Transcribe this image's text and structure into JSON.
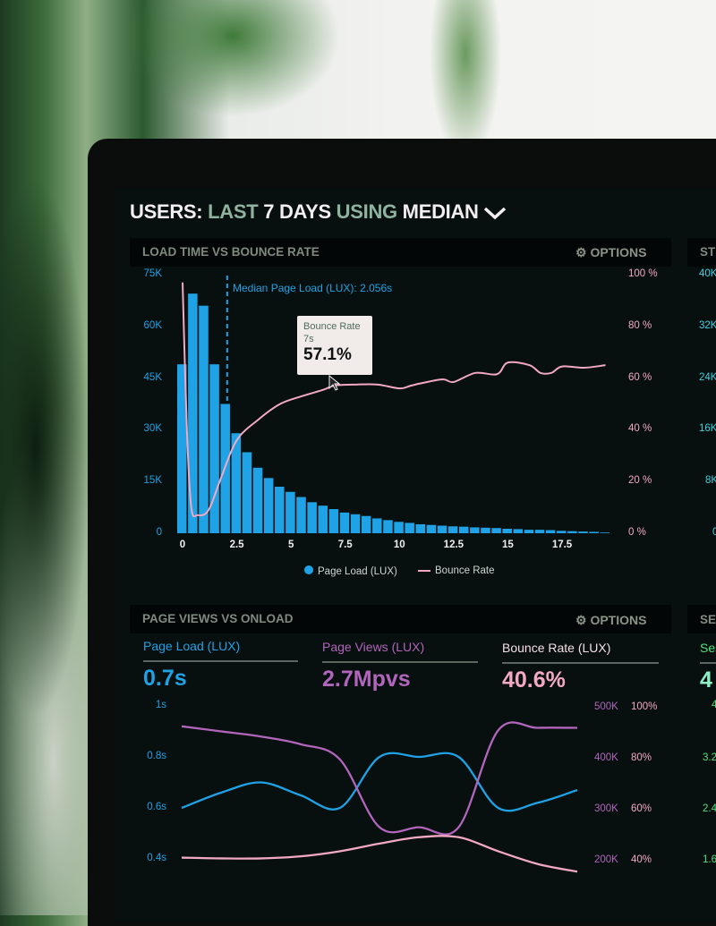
{
  "header": {
    "parts": [
      "USERS:",
      "LAST",
      "7 DAYS",
      "USING",
      "MEDIAN"
    ],
    "dropdown_icon": "chevron-down-icon"
  },
  "colors": {
    "page_load": "#1fa3e6",
    "bounce_rate": "#f3a9c3",
    "page_views": "#b165bb",
    "sessions": "#52e07e",
    "starts": "#3fd1e0"
  },
  "panel1": {
    "title": "LOAD TIME VS BOUNCE RATE",
    "options": "OPTIONS",
    "median_label": "Median Page Load (LUX): 2.056s",
    "tooltip": {
      "series": "Bounce Rate",
      "x": "7s",
      "value": "57.1%"
    },
    "legend": [
      "Page Load (LUX)",
      "Bounce Rate"
    ]
  },
  "panel2": {
    "title": "PAGE VIEWS VS ONLOAD",
    "options": "OPTIONS",
    "metrics": [
      {
        "label": "Page Load (LUX)",
        "value": "0.7s"
      },
      {
        "label": "Page Views (LUX)",
        "value": "2.7Mpvs"
      },
      {
        "label": "Bounce Rate (LUX)",
        "value": "40.6%"
      }
    ]
  },
  "side_panels": {
    "top_title": "ST",
    "top_ticks": [
      "40K",
      "32K",
      "24K",
      "16K",
      "8K",
      "0"
    ],
    "bottom_title": "SE",
    "bottom_metric_label": "Ses",
    "bottom_metric_value": "4",
    "bottom_ticks": [
      "4",
      "3.2",
      "2.4",
      "1.6"
    ]
  },
  "chart_data": [
    {
      "type": "bar+line",
      "title": "LOAD TIME VS BOUNCE RATE",
      "x_ticks": [
        "0",
        "2.5",
        "5",
        "7.5",
        "10",
        "12.5",
        "15",
        "17.5"
      ],
      "y_left_ticks": [
        "75K",
        "60K",
        "45K",
        "30K",
        "15K",
        "0"
      ],
      "y_left_range": [
        0,
        75000
      ],
      "y_right_ticks": [
        "100 %",
        "80 %",
        "60 %",
        "40 %",
        "20 %",
        "0 %"
      ],
      "y_right_range": [
        0,
        100
      ],
      "median_x": 2.056,
      "bars": {
        "name": "Page Load (LUX)",
        "bin_width": 0.5,
        "values_k": [
          49,
          69.5,
          66,
          49,
          37.5,
          29,
          23.5,
          19,
          16,
          13.5,
          12,
          10.5,
          9,
          8,
          7,
          6,
          5.5,
          5,
          4.3,
          3.8,
          3.3,
          3,
          2.6,
          2.4,
          2.2,
          2,
          1.9,
          1.7,
          1.6,
          1.5,
          1.3,
          1.2,
          1,
          1,
          0.9,
          0.7,
          0.6,
          0.5,
          0.4,
          0.2
        ]
      },
      "line": {
        "name": "Bounce Rate",
        "points": [
          [
            0,
            97
          ],
          [
            0.2,
            40
          ],
          [
            0.4,
            10
          ],
          [
            0.7,
            7
          ],
          [
            1.2,
            9
          ],
          [
            1.8,
            22
          ],
          [
            2.5,
            36
          ],
          [
            3.5,
            44
          ],
          [
            4.5,
            50
          ],
          [
            5.5,
            53
          ],
          [
            6.5,
            55.5
          ],
          [
            7,
            57.1
          ],
          [
            8,
            57.5
          ],
          [
            9,
            57.5
          ],
          [
            10,
            56
          ],
          [
            10.5,
            57
          ],
          [
            11,
            58
          ],
          [
            12,
            59.5
          ],
          [
            12.5,
            58.5
          ],
          [
            13.5,
            62
          ],
          [
            14.5,
            61.5
          ],
          [
            15,
            66
          ],
          [
            16,
            65
          ],
          [
            16.5,
            62
          ],
          [
            17,
            62
          ],
          [
            17.5,
            64.5
          ],
          [
            18.5,
            64
          ],
          [
            19.5,
            65
          ]
        ]
      }
    },
    {
      "type": "line",
      "title": "PAGE VIEWS VS ONLOAD",
      "y_left_ticks": [
        "1s",
        "0.8s",
        "0.6s",
        "0.4s"
      ],
      "y_left_range": [
        0.4,
        1.0
      ],
      "y_right_ticks_views": [
        "500K",
        "400K",
        "300K",
        "200K"
      ],
      "y_right_views_range": [
        200,
        500
      ],
      "y_right_ticks_bounce": [
        "100%",
        "80%",
        "60%",
        "40%"
      ],
      "y_right_bounce_range": [
        40,
        100
      ],
      "series": [
        {
          "name": "Page Load (LUX)",
          "axis": "left",
          "values": [
            0.6,
            0.66,
            0.7,
            0.65,
            0.6,
            0.8,
            0.8,
            0.8,
            0.6,
            0.62,
            0.67
          ]
        },
        {
          "name": "Page Views (LUX)",
          "axis": "views",
          "values": [
            460,
            450,
            440,
            425,
            395,
            262,
            262,
            262,
            452,
            457,
            457
          ]
        },
        {
          "name": "Bounce Rate (LUX)",
          "axis": "bounce",
          "values": [
            40.5,
            40.2,
            40.2,
            41,
            43,
            46,
            48.5,
            48.5,
            43,
            38,
            35
          ]
        }
      ]
    }
  ]
}
